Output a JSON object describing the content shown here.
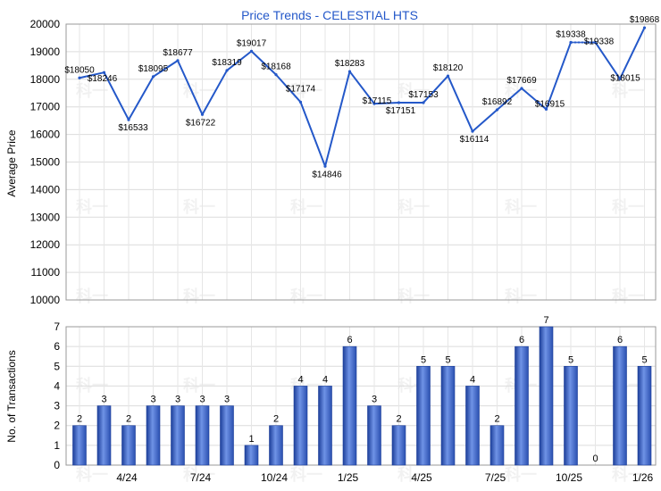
{
  "chart_data": [
    {
      "type": "line",
      "title": "Price Trends - CELESTIAL HTS",
      "ylabel": "Average Price",
      "ylim": [
        10000,
        20000
      ],
      "yticks": [
        "10000",
        "11000",
        "12000",
        "13000",
        "14000",
        "15000",
        "16000",
        "17000",
        "18000",
        "19000",
        "20000"
      ],
      "values": [
        18050,
        18246,
        16533,
        18095,
        18677,
        16722,
        18319,
        19017,
        18168,
        17174,
        14846,
        18283,
        17115,
        17151,
        17153,
        18120,
        16114,
        16892,
        17669,
        16915,
        19338,
        19338,
        18015,
        19868
      ],
      "labels": [
        "$18050",
        "$18246",
        "$16533",
        "$18095",
        "$18677",
        "$16722",
        "$18319",
        "$19017",
        "$18168",
        "$17174",
        "$14846",
        "$18283",
        "$17115",
        "$17151",
        "$17153",
        "$18120",
        "$16114",
        "$16892",
        "$17669",
        "$16915",
        "$19338",
        "$19338",
        "$18015",
        "$19868"
      ],
      "dashed_segment": [
        20,
        21
      ],
      "grid": true,
      "line_color": "#2458c9"
    },
    {
      "type": "bar",
      "ylabel": "No. of Transactions",
      "ylim": [
        0,
        7
      ],
      "yticks": [
        "0",
        "1",
        "2",
        "3",
        "4",
        "5",
        "6",
        "7"
      ],
      "values": [
        2,
        3,
        2,
        3,
        3,
        3,
        3,
        1,
        2,
        4,
        4,
        6,
        3,
        2,
        5,
        5,
        4,
        2,
        6,
        7,
        5,
        0,
        6,
        5
      ],
      "bar_color": "#3a62c4",
      "grid": true
    }
  ],
  "x_ticks": [
    {
      "label": "4/24",
      "index": 2
    },
    {
      "label": "7/24",
      "index": 5
    },
    {
      "label": "10/24",
      "index": 8
    },
    {
      "label": "1/25",
      "index": 11
    },
    {
      "label": "4/25",
      "index": 14
    },
    {
      "label": "7/25",
      "index": 17
    },
    {
      "label": "10/25",
      "index": 20
    },
    {
      "label": "1/26",
      "index": 23
    }
  ],
  "watermark": "科一"
}
